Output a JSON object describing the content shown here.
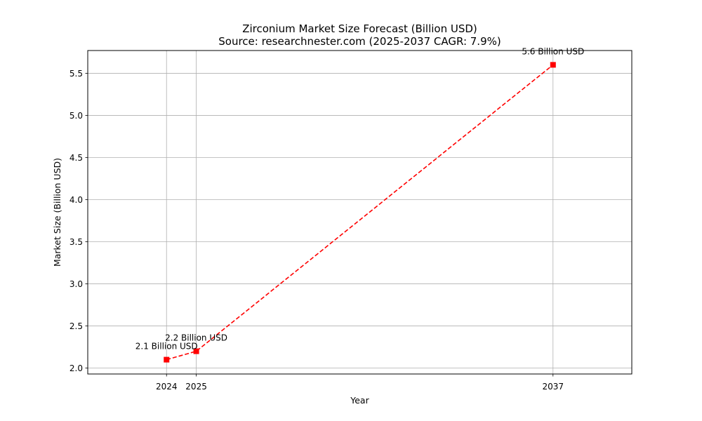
{
  "chart_data": {
    "type": "line",
    "title": "Zirconium Market Size Forecast (Billion USD)",
    "subtitle": "Source: researchnester.com (2025-2037 CAGR: 7.9%)",
    "xlabel": "Year",
    "ylabel": "Market Size (Billion USD)",
    "x": [
      2024,
      2025,
      2037
    ],
    "values": [
      2.1,
      2.2,
      5.6
    ],
    "data_labels": [
      "2.1 Billion USD",
      "2.2 Billion USD",
      "5.6 Billion USD"
    ],
    "x_ticks": [
      "2024",
      "2025",
      "2037"
    ],
    "y_ticks": [
      "2.0",
      "2.5",
      "3.0",
      "3.5",
      "4.0",
      "4.5",
      "5.0",
      "5.5"
    ],
    "xlim": [
      2021.35,
      2039.65
    ],
    "ylim": [
      1.93,
      5.77
    ],
    "grid": true,
    "line_color": "#ff0000",
    "line_style": "dashed",
    "marker": "square"
  }
}
